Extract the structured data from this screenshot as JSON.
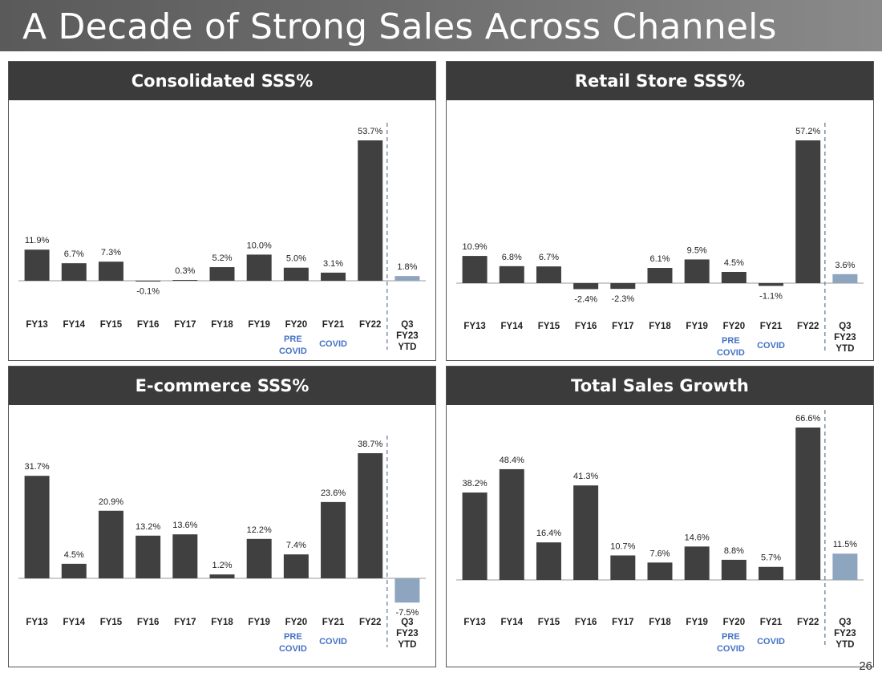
{
  "slide": {
    "title": "A Decade of Strong Sales Across Channels",
    "page_number": "26"
  },
  "colors": {
    "bar": "#404040",
    "highlight_bar": "#8ea5c0",
    "covid_label": "#4472c4",
    "divider": "#7f8fab"
  },
  "chart_data": [
    {
      "type": "bar",
      "title": "Consolidated SSS%",
      "categories": [
        {
          "label": "FY13",
          "note": ""
        },
        {
          "label": "FY14",
          "note": ""
        },
        {
          "label": "FY15",
          "note": ""
        },
        {
          "label": "FY16",
          "note": ""
        },
        {
          "label": "FY17",
          "note": ""
        },
        {
          "label": "FY18",
          "note": ""
        },
        {
          "label": "FY19",
          "note": ""
        },
        {
          "label": "FY20",
          "note": "PRE\nCOVID"
        },
        {
          "label": "FY21",
          "note": "COVID"
        },
        {
          "label": "FY22",
          "note": ""
        },
        {
          "label": "Q3\nFY23\nYTD",
          "note": ""
        }
      ],
      "values": [
        11.9,
        6.7,
        7.3,
        -0.1,
        0.3,
        5.2,
        10.0,
        5.0,
        3.1,
        53.7,
        1.8
      ],
      "value_labels": [
        "11.9%",
        "6.7%",
        "7.3%",
        "-0.1%",
        "0.3%",
        "5.2%",
        "10.0%",
        "5.0%",
        "3.1%",
        "53.7%",
        "1.8%"
      ],
      "highlight_index": 10,
      "ylim": [
        -3,
        59
      ]
    },
    {
      "type": "bar",
      "title": "Retail Store SSS%",
      "categories": [
        {
          "label": "FY13",
          "note": ""
        },
        {
          "label": "FY14",
          "note": ""
        },
        {
          "label": "FY15",
          "note": ""
        },
        {
          "label": "FY16",
          "note": ""
        },
        {
          "label": "FY17",
          "note": ""
        },
        {
          "label": "FY18",
          "note": ""
        },
        {
          "label": "FY19",
          "note": ""
        },
        {
          "label": "FY20",
          "note": "PRE\nCOVID"
        },
        {
          "label": "FY21",
          "note": "COVID"
        },
        {
          "label": "FY22",
          "note": ""
        },
        {
          "label": "Q3\nFY23\nYTD",
          "note": ""
        }
      ],
      "values": [
        10.9,
        6.8,
        6.7,
        -2.4,
        -2.3,
        6.1,
        9.5,
        4.5,
        -1.1,
        57.2,
        3.6
      ],
      "value_labels": [
        "10.9%",
        "6.8%",
        "6.7%",
        "-2.4%",
        "-2.3%",
        "6.1%",
        "9.5%",
        "4.5%",
        "-1.1%",
        "57.2%",
        "3.6%"
      ],
      "highlight_index": 10,
      "ylim": [
        -4,
        62
      ]
    },
    {
      "type": "bar",
      "title": "E-commerce SSS%",
      "categories": [
        {
          "label": "FY13",
          "note": ""
        },
        {
          "label": "FY14",
          "note": ""
        },
        {
          "label": "FY15",
          "note": ""
        },
        {
          "label": "FY16",
          "note": ""
        },
        {
          "label": "FY17",
          "note": ""
        },
        {
          "label": "FY18",
          "note": ""
        },
        {
          "label": "FY19",
          "note": ""
        },
        {
          "label": "FY20",
          "note": "PRE\nCOVID"
        },
        {
          "label": "FY21",
          "note": "COVID"
        },
        {
          "label": "FY22",
          "note": ""
        },
        {
          "label": "Q3\nFY23\nYTD",
          "note": ""
        }
      ],
      "values": [
        31.7,
        4.5,
        20.9,
        13.2,
        13.6,
        1.2,
        12.2,
        7.4,
        23.6,
        38.7,
        -7.5
      ],
      "value_labels": [
        "31.7%",
        "4.5%",
        "20.9%",
        "13.2%",
        "13.6%",
        "1.2%",
        "12.2%",
        "7.4%",
        "23.6%",
        "38.7%",
        "-7.5%"
      ],
      "highlight_index": 10,
      "ylim": [
        -12,
        44
      ]
    },
    {
      "type": "bar",
      "title": "Total Sales Growth",
      "categories": [
        {
          "label": "FY13",
          "note": ""
        },
        {
          "label": "FY14",
          "note": ""
        },
        {
          "label": "FY15",
          "note": ""
        },
        {
          "label": "FY16",
          "note": ""
        },
        {
          "label": "FY17",
          "note": ""
        },
        {
          "label": "FY18",
          "note": ""
        },
        {
          "label": "FY19",
          "note": ""
        },
        {
          "label": "FY20",
          "note": "PRE\nCOVID"
        },
        {
          "label": "FY21",
          "note": "COVID"
        },
        {
          "label": "FY22",
          "note": ""
        },
        {
          "label": "Q3\nFY23\nYTD",
          "note": ""
        }
      ],
      "values": [
        38.2,
        48.4,
        16.4,
        41.3,
        10.7,
        7.6,
        14.6,
        8.8,
        5.7,
        66.6,
        11.5
      ],
      "value_labels": [
        "38.2%",
        "48.4%",
        "16.4%",
        "41.3%",
        "10.7%",
        "7.6%",
        "14.6%",
        "8.8%",
        "5.7%",
        "66.6%",
        "11.5%"
      ],
      "highlight_index": 10,
      "ylim": [
        -5,
        70
      ]
    }
  ]
}
